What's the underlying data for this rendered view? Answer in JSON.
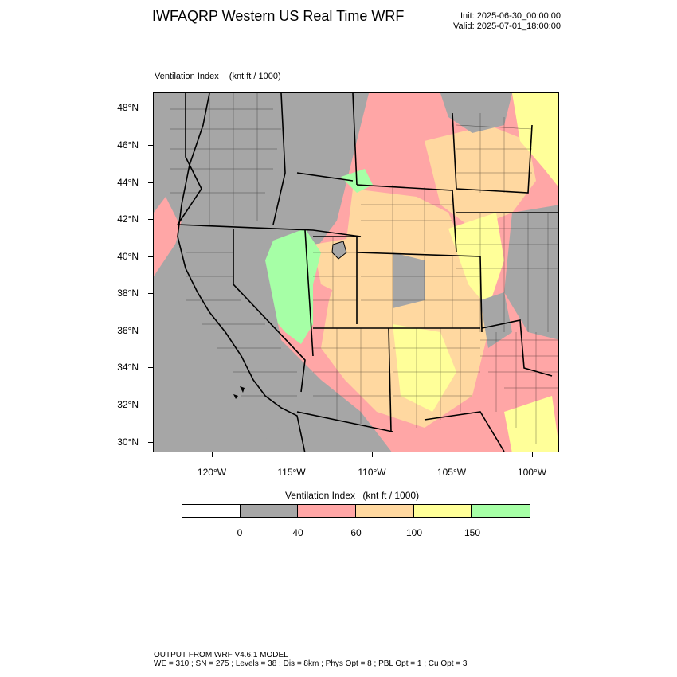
{
  "header": {
    "title": "IWFAQRP Western US Real Time WRF",
    "init": "Init: 2025-06-30_00:00:00",
    "valid": "Valid: 2025-07-01_18:00:00"
  },
  "plot": {
    "field_name": "Ventilation Index",
    "units": "(knt ft / 1000)"
  },
  "axes": {
    "lat_labels": [
      "48°N",
      "46°N",
      "44°N",
      "42°N",
      "40°N",
      "38°N",
      "36°N",
      "34°N",
      "32°N",
      "30°N"
    ],
    "lon_labels": [
      "120°W",
      "115°W",
      "110°W",
      "105°W",
      "100°W"
    ]
  },
  "colorbar": {
    "title": "Ventilation Index",
    "units": "(knt ft / 1000)",
    "labels": [
      "0",
      "40",
      "60",
      "100",
      "150"
    ],
    "colors": [
      "#ffffff",
      "#a6a6a6",
      "#ffa6a6",
      "#ffd8a0",
      "#ffff99",
      "#a6ffa6"
    ]
  },
  "footer": {
    "line1": "OUTPUT FROM WRF V4.6.1 MODEL",
    "line2": "WE = 310 ; SN = 275 ; Levels = 38 ; Dis = 8km ; Phys Opt = 8 ; PBL Opt = 1 ; Cu Opt = 3"
  }
}
